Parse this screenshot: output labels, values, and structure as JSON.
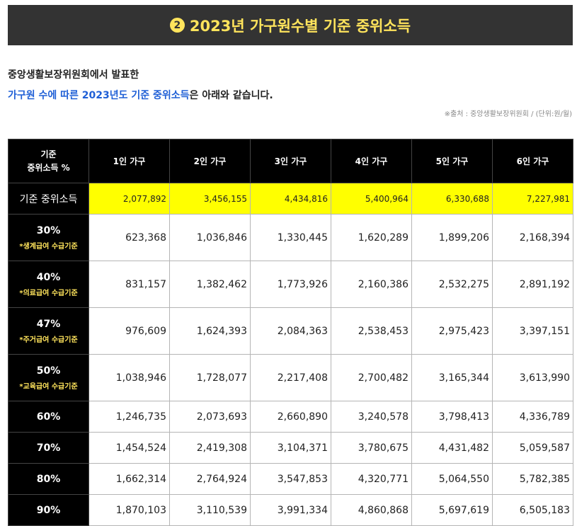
{
  "banner": {
    "number": "2",
    "title": "2023년 가구원수별 기준 중위소득"
  },
  "intro": {
    "line1": "중앙생활보장위원회에서 발표한",
    "line2_highlight": "가구원 수에 따른 2023년도 기준 중위소득",
    "line2_rest": "은 아래와 같습니다."
  },
  "source": "※출처 : 중앙생활보장위원회 / (단위:원/월)",
  "table": {
    "corner_line1": "기준",
    "corner_line2": "중위소득 %",
    "columns": [
      "1인 가구",
      "2인 가구",
      "3인 가구",
      "4인 가구",
      "5인 가구",
      "6인 가구"
    ],
    "base_row": {
      "label": "기준 중위소득",
      "values": [
        "2,077,892",
        "3,456,155",
        "4,434,816",
        "5,400,964",
        "6,330,688",
        "7,227,981"
      ]
    },
    "rows": [
      {
        "pct": "30%",
        "note": "*생계급여 수급기준",
        "values": [
          "623,368",
          "1,036,846",
          "1,330,445",
          "1,620,289",
          "1,899,206",
          "2,168,394"
        ]
      },
      {
        "pct": "40%",
        "note": "*의료급여 수급기준",
        "values": [
          "831,157",
          "1,382,462",
          "1,773,926",
          "2,160,386",
          "2,532,275",
          "2,891,192"
        ]
      },
      {
        "pct": "47%",
        "note": "*주거급여 수급기준",
        "values": [
          "976,609",
          "1,624,393",
          "2,084,363",
          "2,538,453",
          "2,975,423",
          "3,397,151"
        ]
      },
      {
        "pct": "50%",
        "note": "*교육급여 수급기준",
        "values": [
          "1,038,946",
          "1,728,077",
          "2,217,408",
          "2,700,482",
          "3,165,344",
          "3,613,990"
        ]
      },
      {
        "pct": "60%",
        "note": "",
        "values": [
          "1,246,735",
          "2,073,693",
          "2,660,890",
          "3,240,578",
          "3,798,413",
          "4,336,789"
        ]
      },
      {
        "pct": "70%",
        "note": "",
        "values": [
          "1,454,524",
          "2,419,308",
          "3,104,371",
          "3,780,675",
          "4,431,482",
          "5,059,587"
        ]
      },
      {
        "pct": "80%",
        "note": "",
        "values": [
          "1,662,314",
          "2,764,924",
          "3,547,853",
          "4,320,771",
          "5,064,550",
          "5,782,385"
        ]
      },
      {
        "pct": "90%",
        "note": "",
        "values": [
          "1,870,103",
          "3,110,539",
          "3,991,334",
          "4,860,868",
          "5,697,619",
          "6,505,183"
        ]
      }
    ]
  },
  "colors": {
    "banner_bg": "#333333",
    "banner_text": "#ffe45c",
    "highlight_text": "#1f5fd6",
    "base_row_bg": "#ffff00",
    "header_bg": "#000000",
    "note_text": "#ffe45c"
  }
}
